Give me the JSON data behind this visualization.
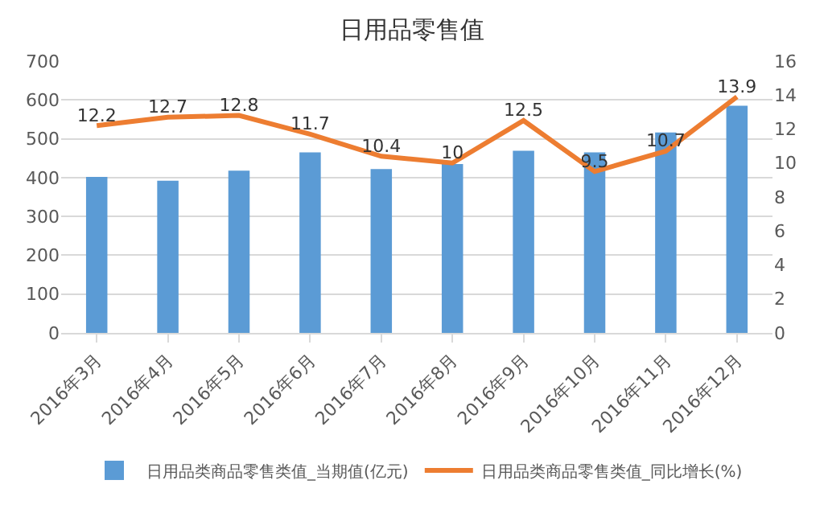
{
  "chart_data": {
    "type": "bar",
    "title": "日用品零售值",
    "categories": [
      "2016年3月",
      "2016年4月",
      "2016年5月",
      "2016年6月",
      "2016年7月",
      "2016年8月",
      "2016年9月",
      "2016年10月",
      "2016年11月",
      "2016年12月"
    ],
    "series": [
      {
        "name": "日用品类商品零售类值_当期值(亿元)",
        "color": "#5b9bd5",
        "values": [
          402,
          392,
          418,
          465,
          422,
          435,
          469,
          465,
          516,
          585
        ]
      },
      {
        "name": "日用品类商品零售类值_同比增长(%)",
        "type": "line",
        "axis": "y2",
        "color": "#ed7d31",
        "values": [
          12.2,
          12.7,
          12.8,
          11.7,
          10.4,
          10,
          12.5,
          9.5,
          10.7,
          13.9
        ],
        "data_labels": true
      }
    ],
    "ylim": [
      0,
      700
    ],
    "yticks": [
      0,
      100,
      200,
      300,
      400,
      500,
      600,
      700
    ],
    "y2lim": [
      0,
      16
    ],
    "y2ticks": [
      0,
      2,
      4,
      6,
      8,
      10,
      12,
      14,
      16
    ],
    "grid": "y",
    "legend": "bottom",
    "marker": "none"
  }
}
